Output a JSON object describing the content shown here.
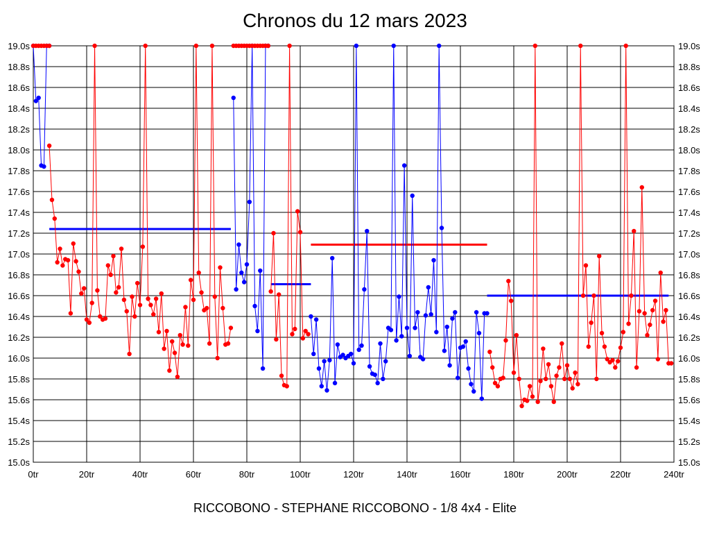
{
  "chart_data": {
    "type": "line",
    "title": "Chronos du 12 mars 2023",
    "subtitle": "RICCOBONO - STEPHANE RICCOBONO - 1/8 4x4 - Elite",
    "xlim": [
      0,
      240
    ],
    "ylim": [
      15.0,
      19.0
    ],
    "x_ticks": [
      {
        "value": 0,
        "label": "0tr"
      },
      {
        "value": 20,
        "label": "20tr"
      },
      {
        "value": 40,
        "label": "40tr"
      },
      {
        "value": 60,
        "label": "60tr"
      },
      {
        "value": 80,
        "label": "80tr"
      },
      {
        "value": 100,
        "label": "100tr"
      },
      {
        "value": 120,
        "label": "120tr"
      },
      {
        "value": 140,
        "label": "140tr"
      },
      {
        "value": 160,
        "label": "160tr"
      },
      {
        "value": 180,
        "label": "180tr"
      },
      {
        "value": 200,
        "label": "200tr"
      },
      {
        "value": 220,
        "label": "220tr"
      },
      {
        "value": 240,
        "label": "240tr"
      }
    ],
    "y_ticks": [
      {
        "value": 15.0,
        "label": "15.0s"
      },
      {
        "value": 15.2,
        "label": "15.2s"
      },
      {
        "value": 15.4,
        "label": "15.4s"
      },
      {
        "value": 15.6,
        "label": "15.6s"
      },
      {
        "value": 15.8,
        "label": "15.8s"
      },
      {
        "value": 16.0,
        "label": "16.0s"
      },
      {
        "value": 16.2,
        "label": "16.2s"
      },
      {
        "value": 16.4,
        "label": "16.4s"
      },
      {
        "value": 16.6,
        "label": "16.6s"
      },
      {
        "value": 16.8,
        "label": "16.8s"
      },
      {
        "value": 17.0,
        "label": "17.0s"
      },
      {
        "value": 17.2,
        "label": "17.2s"
      },
      {
        "value": 17.4,
        "label": "17.4s"
      },
      {
        "value": 17.6,
        "label": "17.6s"
      },
      {
        "value": 17.8,
        "label": "17.8s"
      },
      {
        "value": 18.0,
        "label": "18.0s"
      },
      {
        "value": 18.2,
        "label": "18.2s"
      },
      {
        "value": 18.4,
        "label": "18.4s"
      },
      {
        "value": 18.6,
        "label": "18.6s"
      },
      {
        "value": 18.8,
        "label": "18.8s"
      },
      {
        "value": 19.0,
        "label": "19.0s"
      }
    ],
    "grid": true,
    "colors": {
      "red": "#ff0000",
      "blue": "#0000ff"
    },
    "series": [
      {
        "color": "#0000ff",
        "x": [
          0,
          1,
          2,
          3,
          4,
          5,
          6
        ],
        "y": [
          19.0,
          18.47,
          18.5,
          17.85,
          17.84,
          19.0,
          19.0
        ]
      },
      {
        "color": "#ff0000",
        "x": [
          0,
          1,
          2,
          3,
          4,
          5,
          6
        ],
        "y": [
          19.0,
          19.0,
          19.0,
          19.0,
          19.0,
          19.0,
          19.0
        ]
      },
      {
        "color": "#ff0000",
        "x": [
          6,
          7,
          8,
          9,
          10,
          11,
          12,
          13,
          14,
          15,
          16,
          17,
          18,
          19,
          20,
          21,
          22,
          23,
          24,
          25,
          26,
          27,
          28,
          29,
          30,
          31,
          32,
          33,
          34,
          35,
          36,
          37,
          38,
          39,
          40,
          41,
          42,
          43,
          44,
          45,
          46,
          47,
          48,
          49,
          50,
          51,
          52,
          53,
          54,
          55,
          56,
          57,
          58,
          59,
          60,
          61,
          62,
          63,
          64,
          65,
          66,
          67,
          68,
          69,
          70,
          71,
          72,
          73,
          74
        ],
        "y": [
          18.04,
          17.52,
          17.34,
          16.92,
          17.05,
          16.89,
          16.95,
          16.94,
          16.43,
          17.1,
          16.93,
          16.83,
          16.62,
          16.67,
          16.37,
          16.34,
          16.53,
          19.0,
          16.65,
          16.4,
          16.37,
          16.38,
          16.89,
          16.8,
          16.98,
          16.63,
          16.68,
          17.05,
          16.56,
          16.45,
          16.04,
          16.59,
          16.4,
          16.72,
          16.51,
          17.07,
          19.0,
          16.57,
          16.51,
          16.42,
          16.57,
          16.25,
          16.62,
          16.09,
          16.26,
          15.88,
          16.16,
          16.05,
          15.82,
          16.22,
          16.13,
          16.49,
          16.12,
          16.75,
          16.56,
          19.0,
          16.82,
          16.63,
          16.46,
          16.48,
          16.14,
          19.0,
          16.59,
          16.0,
          16.87,
          16.48,
          16.13,
          16.14,
          16.29
        ]
      },
      {
        "color": "#0000ff",
        "x": [
          75,
          76,
          77,
          78,
          79,
          80,
          81,
          82,
          83,
          84,
          85,
          86,
          87,
          88
        ],
        "y": [
          18.5,
          16.66,
          17.09,
          16.82,
          16.73,
          16.9,
          17.5,
          19.0,
          16.5,
          16.26,
          16.84,
          15.9,
          19.0,
          19.0
        ]
      },
      {
        "color": "#ff0000",
        "x": [
          75,
          76,
          77,
          78,
          79,
          80,
          81,
          82,
          83,
          84,
          85,
          86,
          87,
          88
        ],
        "y": [
          19.0,
          19.0,
          19.0,
          19.0,
          19.0,
          19.0,
          19.0,
          19.0,
          19.0,
          19.0,
          19.0,
          19.0,
          19.0,
          19.0
        ]
      },
      {
        "color": "#ff0000",
        "x": [
          89,
          90,
          91,
          92,
          93,
          94,
          95,
          96,
          97,
          98,
          99,
          100,
          101,
          102,
          103
        ],
        "y": [
          16.64,
          17.2,
          16.18,
          16.61,
          15.83,
          15.74,
          15.73,
          19.0,
          16.23,
          16.28,
          17.41,
          17.21,
          16.19,
          16.26,
          16.23
        ]
      },
      {
        "color": "#0000ff",
        "x": [
          104,
          105,
          106,
          107,
          108,
          109,
          110,
          111,
          112,
          113,
          114,
          115,
          116,
          117,
          118,
          119,
          120,
          121,
          122,
          123,
          124,
          125,
          126,
          127,
          128,
          129,
          130,
          131,
          132,
          133,
          134,
          135,
          136,
          137,
          138,
          139,
          140,
          141,
          142,
          143,
          144,
          145,
          146,
          147,
          148,
          149,
          150,
          151,
          152,
          153,
          154,
          155,
          156,
          157,
          158,
          159,
          160,
          161,
          162,
          163,
          164,
          165,
          166,
          167,
          168,
          169,
          170
        ],
        "y": [
          16.4,
          16.04,
          16.37,
          15.9,
          15.73,
          15.97,
          15.69,
          15.98,
          16.96,
          15.76,
          16.13,
          16.01,
          16.03,
          16.0,
          16.02,
          16.04,
          15.95,
          19.0,
          16.08,
          16.12,
          16.66,
          17.22,
          15.92,
          15.85,
          15.84,
          15.76,
          16.14,
          15.8,
          15.97,
          16.29,
          16.27,
          19.0,
          16.17,
          16.59,
          16.21,
          17.85,
          16.29,
          16.02,
          17.56,
          16.29,
          16.44,
          16.01,
          15.99,
          16.41,
          16.68,
          16.42,
          16.94,
          16.25,
          19.0,
          17.25,
          16.07,
          16.3,
          15.93,
          16.38,
          16.44,
          15.81,
          16.1,
          16.11,
          16.16,
          15.9,
          15.75,
          15.68,
          16.44,
          16.24,
          15.61,
          16.43,
          16.43
        ]
      },
      {
        "color": "#ff0000",
        "x": [
          171,
          172,
          173,
          174,
          175,
          176,
          177,
          178,
          179,
          180,
          181,
          182,
          183,
          184,
          185,
          186,
          187,
          188,
          189,
          190,
          191,
          192,
          193,
          194,
          195,
          196,
          197,
          198,
          199,
          200,
          201,
          202,
          203,
          204,
          205,
          206,
          207,
          208,
          209,
          210,
          211,
          212,
          213,
          214,
          215,
          216,
          217,
          218,
          219,
          220,
          221,
          222,
          223,
          224,
          225,
          226,
          227,
          228,
          229,
          230,
          231,
          232,
          233,
          234,
          235,
          236,
          237,
          238,
          239
        ],
        "y": [
          16.06,
          15.91,
          15.76,
          15.73,
          15.8,
          15.81,
          16.17,
          16.74,
          16.55,
          15.86,
          16.22,
          15.8,
          15.54,
          15.6,
          15.59,
          15.73,
          15.63,
          19.0,
          15.58,
          15.78,
          16.09,
          15.8,
          15.94,
          15.73,
          15.58,
          15.83,
          15.91,
          16.14,
          15.8,
          15.93,
          15.8,
          15.71,
          15.86,
          15.75,
          19.0,
          16.6,
          16.89,
          16.11,
          16.34,
          16.6,
          15.8,
          16.98,
          16.24,
          16.11,
          15.99,
          15.96,
          15.98,
          15.91,
          15.97,
          16.1,
          16.25,
          19.0,
          16.33,
          16.6,
          17.22,
          15.91,
          16.45,
          17.64,
          16.43,
          16.22,
          16.32,
          16.46,
          16.55,
          15.99,
          16.82,
          16.35,
          16.46,
          15.95,
          15.95
        ]
      }
    ],
    "average_lines": [
      {
        "color": "#0000ff",
        "x": [
          6,
          74
        ],
        "y": 17.24
      },
      {
        "color": "#0000ff",
        "x": [
          89,
          104
        ],
        "y": 16.71
      },
      {
        "color": "#ff0000",
        "x": [
          104,
          170
        ],
        "y": 17.09
      },
      {
        "color": "#0000ff",
        "x": [
          170,
          238
        ],
        "y": 16.6
      }
    ]
  }
}
